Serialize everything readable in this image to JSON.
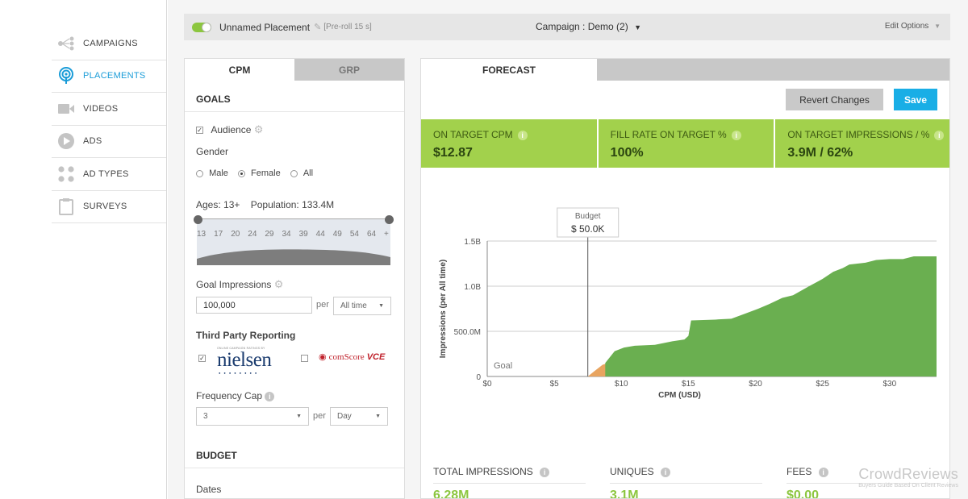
{
  "nav": {
    "items": [
      {
        "label": "CAMPAIGNS",
        "icon": "campaigns-icon",
        "active": false
      },
      {
        "label": "PLACEMENTS",
        "icon": "placements-icon",
        "active": true
      },
      {
        "label": "VIDEOS",
        "icon": "videos-icon",
        "active": false
      },
      {
        "label": "ADS",
        "icon": "ads-icon",
        "active": false
      },
      {
        "label": "AD TYPES",
        "icon": "ad-types-icon",
        "active": false
      },
      {
        "label": "SURVEYS",
        "icon": "surveys-icon",
        "active": false
      }
    ]
  },
  "topbar": {
    "placement_name": "Unnamed Placement",
    "placement_tag": "[Pre-roll 15 s]",
    "campaign": "Campaign : Demo (2)",
    "edit_options": "Edit Options"
  },
  "left": {
    "tabs": [
      "CPM",
      "GRP"
    ],
    "goals_heading": "GOALS",
    "audience_label": "Audience",
    "gender_label": "Gender",
    "gender_options": [
      "Male",
      "Female",
      "All"
    ],
    "gender_selected": "Female",
    "ages_text": "Ages: 13+",
    "population_text": "Population: 133.4M",
    "age_ticks": [
      "13",
      "17",
      "20",
      "24",
      "29",
      "34",
      "39",
      "44",
      "49",
      "54",
      "64",
      "+"
    ],
    "goal_impressions_label": "Goal Impressions",
    "goal_impressions_value": "100,000",
    "per_label": "per",
    "goal_period": "All time",
    "third_party_label": "Third Party Reporting",
    "nielsen_caption": "ONLINE CAMPAIGN RATINGS BY",
    "nielsen_logo": "nielsen",
    "comscore_logo": "comScore",
    "comscore_vce": "VCE",
    "frequency_cap_label": "Frequency Cap",
    "frequency_cap_value": "3",
    "frequency_period": "Day",
    "budget_heading": "BUDGET",
    "dates_label": "Dates"
  },
  "forecast": {
    "tab_label": "FORECAST",
    "revert_label": "Revert Changes",
    "save_label": "Save",
    "kpis": [
      {
        "label": "ON TARGET CPM",
        "value": "$12.87"
      },
      {
        "label": "FILL RATE ON TARGET %",
        "value": "100%"
      },
      {
        "label": "ON TARGET IMPRESSIONS / %",
        "value": "3.9M / 62%"
      }
    ],
    "totals": [
      {
        "label": "TOTAL IMPRESSIONS",
        "value": "6.28M"
      },
      {
        "label": "UNIQUES",
        "value": "3.1M"
      },
      {
        "label": "FEES",
        "value": "$0.00"
      }
    ],
    "colors": {
      "kpi_bg": "#a2d14c",
      "save_bg": "#19aee6",
      "area_green": "#6aaf50",
      "area_orange": "#e8a460"
    }
  },
  "chart_data": {
    "type": "area",
    "ylabel": "Impressions (per All time)",
    "xlabel": "CPM (USD)",
    "xlim": [
      0,
      33.5
    ],
    "ylim": [
      0,
      1500
    ],
    "x_ticks": [
      "$0",
      "$5",
      "$10",
      "$15",
      "$20",
      "$25",
      "$30"
    ],
    "y_ticks": [
      "0",
      "500.0M",
      "1.0B",
      "1.5B"
    ],
    "budget_label": "Budget",
    "budget_value": "$ 50.0K",
    "budget_x": 7.5,
    "goal_label": "Goal",
    "grid": true,
    "series": [
      {
        "color": "#e8a460",
        "x": [
          7.5,
          8.0,
          8.6,
          9.0
        ],
        "y": [
          0,
          60,
          130,
          150
        ]
      },
      {
        "color": "#6aaf50",
        "x": [
          8.8,
          9.5,
          10.2,
          11.0,
          12.5,
          13.8,
          14.7,
          15.0,
          15.2,
          17.0,
          18.2,
          19.3,
          20.2,
          21.0,
          22.0,
          22.8,
          24.0,
          25.0,
          25.8,
          26.5,
          27.0,
          28.2,
          29.0,
          30.0,
          31.0,
          31.8,
          32.7,
          33.5
        ],
        "y": [
          150,
          280,
          320,
          340,
          350,
          390,
          410,
          450,
          620,
          630,
          640,
          700,
          750,
          800,
          870,
          900,
          1000,
          1080,
          1160,
          1200,
          1240,
          1260,
          1290,
          1300,
          1300,
          1330,
          1330,
          1330
        ]
      }
    ]
  },
  "watermark": {
    "line1": "CrowdReviews",
    "line2": "Buyers Guide Based On Client Reviews"
  }
}
